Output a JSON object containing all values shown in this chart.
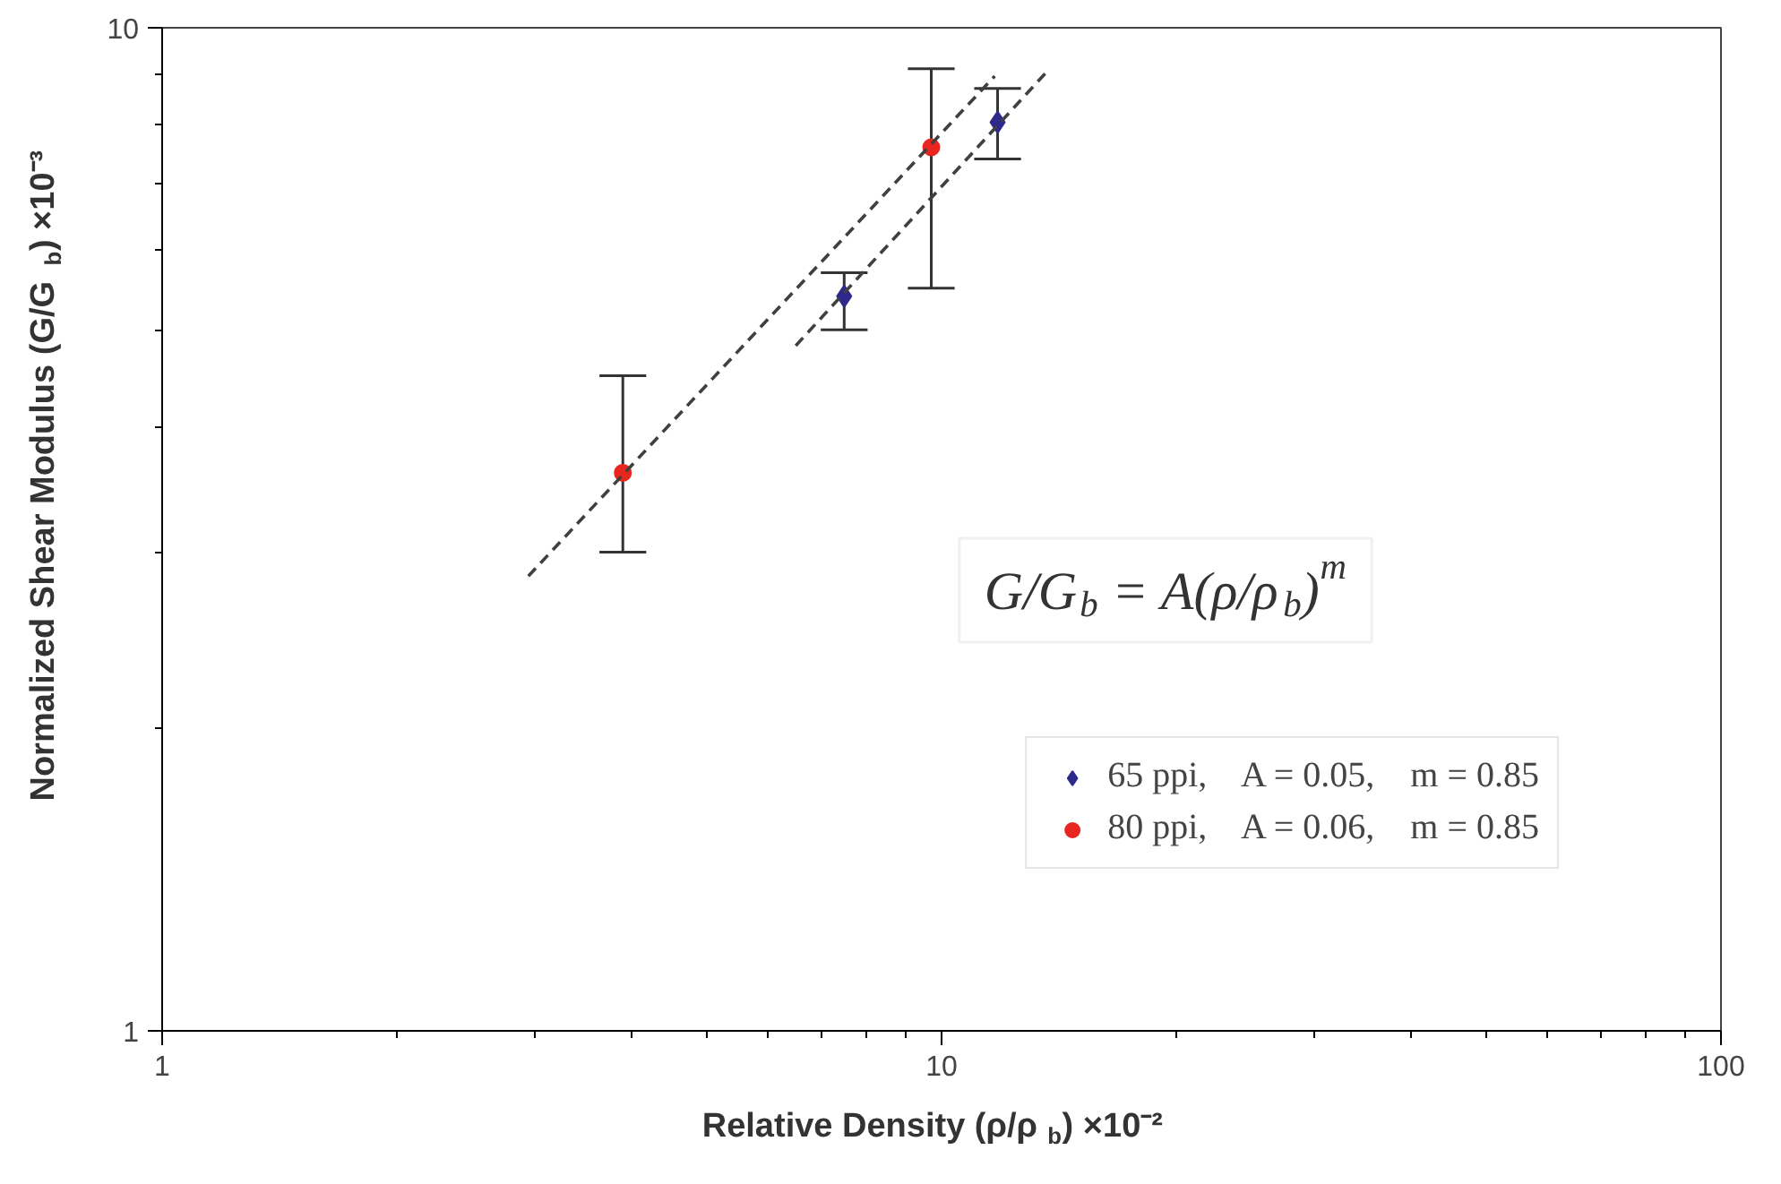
{
  "chart_data": {
    "type": "scatter",
    "xlabel": "Relative Density (ρ/ρ$_{b}$) ×10⁻²",
    "ylabel": "Normalized Shear Modulus (G/G$_{b}$) ×10⁻³",
    "log": "xy",
    "xlim": [
      1,
      100
    ],
    "ylim": [
      1,
      10
    ],
    "xticks": [
      1,
      10,
      100
    ],
    "yticks": [
      1,
      10
    ],
    "grid": false,
    "legend": "bottom right",
    "annotations": [
      "G/G$_{b}$ = A(ρ/ρ$_{b}$)$^{m}$"
    ],
    "series": [
      {
        "name": "65 ppi,    A = 0.05,    m = 0.85",
        "color": "#2e2a8c",
        "marker": "diamond",
        "x": [
          7.5,
          11.8
        ],
        "values": [
          5.4,
          8.05
        ],
        "errors": [
          [
            5.0,
            5.7
          ],
          [
            7.4,
            8.7
          ]
        ]
      },
      {
        "name": "80 ppi,    A = 0.06,    m = 0.85",
        "color": "#e8261f",
        "marker": "circle",
        "x": [
          3.9,
          9.7
        ],
        "values": [
          3.6,
          7.6
        ],
        "errors": [
          [
            3.0,
            4.5
          ],
          [
            5.5,
            9.1
          ]
        ]
      },
      {
        "type": "line",
        "color": "#404040",
        "line_style": "dashed",
        "marker": "none",
        "x": [
          2.95,
          11.7
        ],
        "values": [
          2.84,
          8.95
        ]
      },
      {
        "type": "line",
        "color": "#404040",
        "line_style": "dashed",
        "marker": "none",
        "x": [
          6.5,
          13.7
        ],
        "values": [
          4.82,
          9.07
        ]
      }
    ]
  }
}
